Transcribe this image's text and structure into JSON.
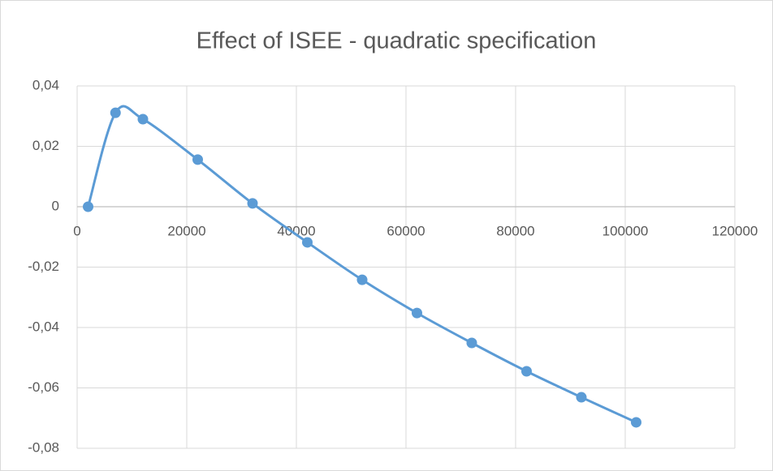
{
  "chart_data": {
    "type": "scatter",
    "title": "Effect of ISEE - quadratic specification",
    "smooth": true,
    "grid": true,
    "series": [
      {
        "color": "#5b9bd5",
        "x": [
          2000,
          7000,
          12000,
          22000,
          32000,
          42000,
          52000,
          62000,
          72000,
          82000,
          92000,
          102000
        ],
        "values": [
          0,
          0.0311,
          0.029,
          0.0156,
          0.0011,
          -0.0118,
          -0.0242,
          -0.0352,
          -0.0451,
          -0.0545,
          -0.0631,
          -0.0714
        ]
      }
    ],
    "xlim": [
      0,
      120000
    ],
    "xticks": [
      0,
      20000,
      40000,
      60000,
      80000,
      100000,
      120000
    ],
    "ylim": [
      -0.08,
      0.04
    ],
    "yticks": [
      {
        "value": -0.08,
        "label": "-0,08"
      },
      {
        "value": -0.06,
        "label": "-0,06"
      },
      {
        "value": -0.04,
        "label": "-0,04"
      },
      {
        "value": -0.02,
        "label": "-0,02"
      },
      0,
      {
        "value": 0.02,
        "label": "0,02"
      },
      {
        "value": 0.04,
        "label": "0,04"
      }
    ]
  }
}
